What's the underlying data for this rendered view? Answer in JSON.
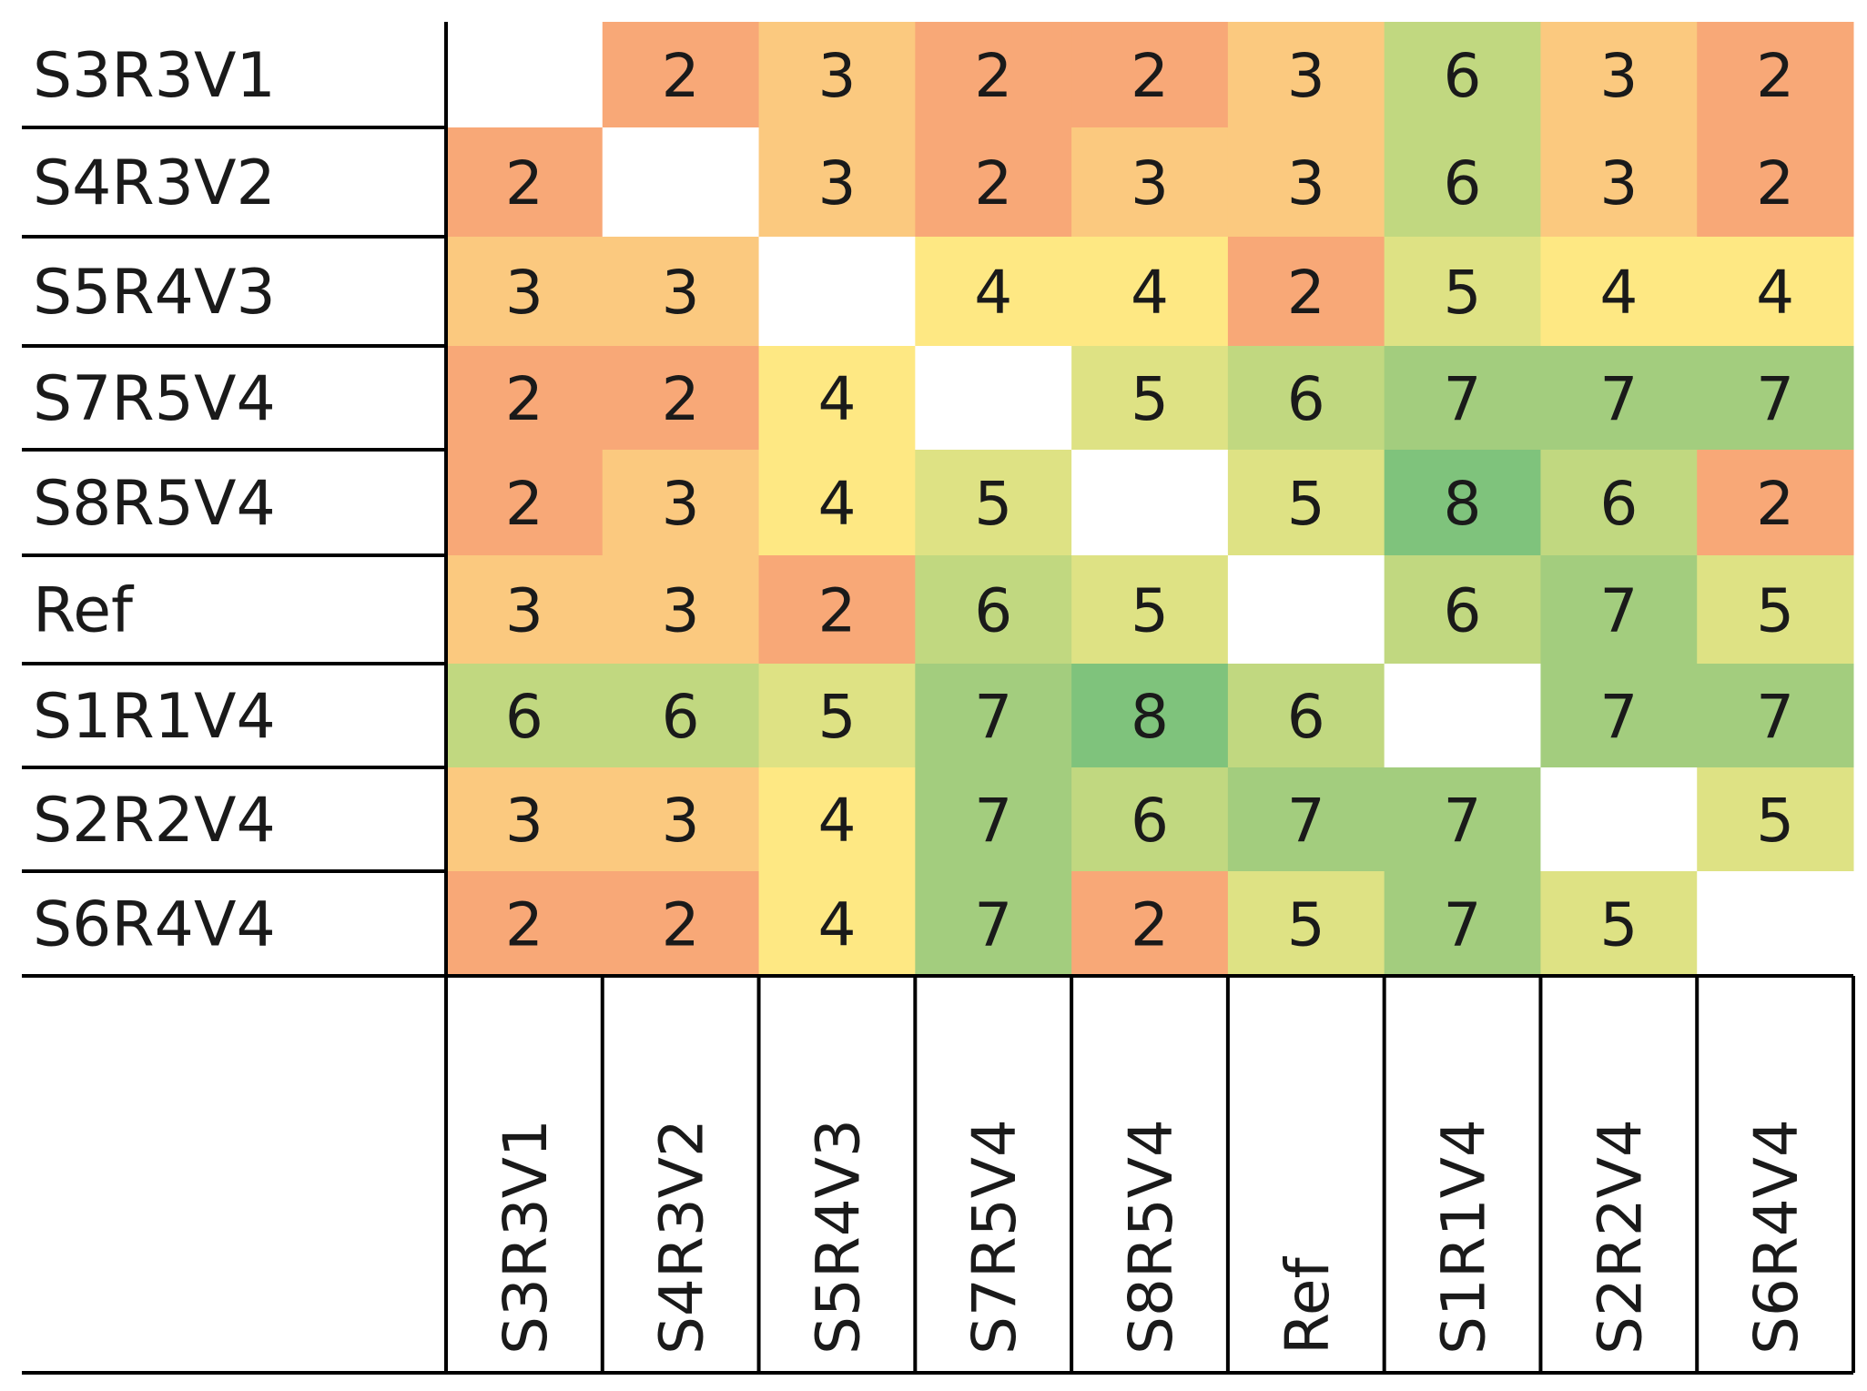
{
  "chart_data": {
    "type": "heatmap",
    "rows": [
      "S3R3V1",
      "S4R3V2",
      "S5R4V3",
      "S7R5V4",
      "S8R5V4",
      "Ref",
      "S1R1V4",
      "S2R2V4",
      "S6R4V4"
    ],
    "columns": [
      "S3R3V1",
      "S4R3V2",
      "S5R4V3",
      "S7R5V4",
      "S8R5V4",
      "Ref",
      "S1R1V4",
      "S2R2V4",
      "S6R4V4"
    ],
    "values": [
      [
        null,
        2,
        3,
        2,
        2,
        3,
        6,
        3,
        2
      ],
      [
        2,
        null,
        3,
        2,
        3,
        3,
        6,
        3,
        2
      ],
      [
        3,
        3,
        null,
        4,
        4,
        2,
        5,
        4,
        4
      ],
      [
        2,
        2,
        4,
        null,
        5,
        6,
        7,
        7,
        7
      ],
      [
        2,
        3,
        4,
        5,
        null,
        5,
        8,
        6,
        2
      ],
      [
        3,
        3,
        2,
        6,
        5,
        null,
        6,
        7,
        5
      ],
      [
        6,
        6,
        5,
        7,
        8,
        6,
        null,
        7,
        7
      ],
      [
        3,
        3,
        4,
        7,
        6,
        7,
        7,
        null,
        5
      ],
      [
        2,
        2,
        4,
        7,
        2,
        5,
        7,
        5,
        null
      ]
    ],
    "color_scale": {
      "2": "#f8a877",
      "3": "#fbc97f",
      "4": "#fee883",
      "5": "#dee284",
      "6": "#c1d880",
      "7": "#a3cd7e",
      "8": "#7fc37c"
    },
    "legend": "none",
    "grid": "row separators and column separators"
  }
}
